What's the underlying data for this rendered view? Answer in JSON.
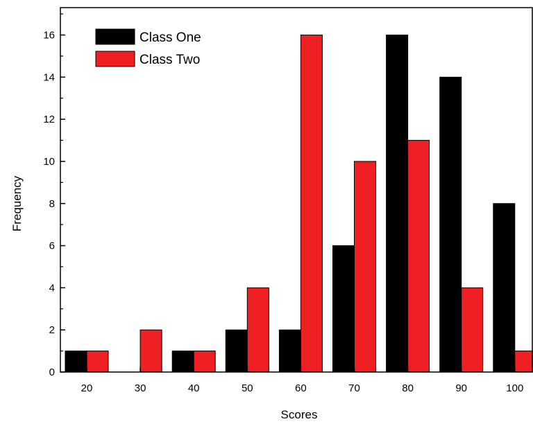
{
  "chart_data": {
    "type": "bar",
    "xlabel": "Scores",
    "ylabel": "Frequency",
    "categories": [
      "20",
      "30",
      "40",
      "50",
      "60",
      "70",
      "80",
      "90",
      "100"
    ],
    "series": [
      {
        "name": "Class One",
        "color": "#000000",
        "values": [
          1,
          0,
          1,
          2,
          2,
          6,
          16,
          14,
          8
        ]
      },
      {
        "name": "Class Two",
        "color": "#ee2024",
        "values": [
          1,
          2,
          1,
          4,
          16,
          10,
          11,
          4,
          1
        ]
      }
    ],
    "ylim": [
      0,
      17.3
    ],
    "yticks": [
      0,
      2,
      4,
      6,
      8,
      10,
      12,
      14,
      16
    ],
    "grid": false,
    "legend": "top-left"
  }
}
